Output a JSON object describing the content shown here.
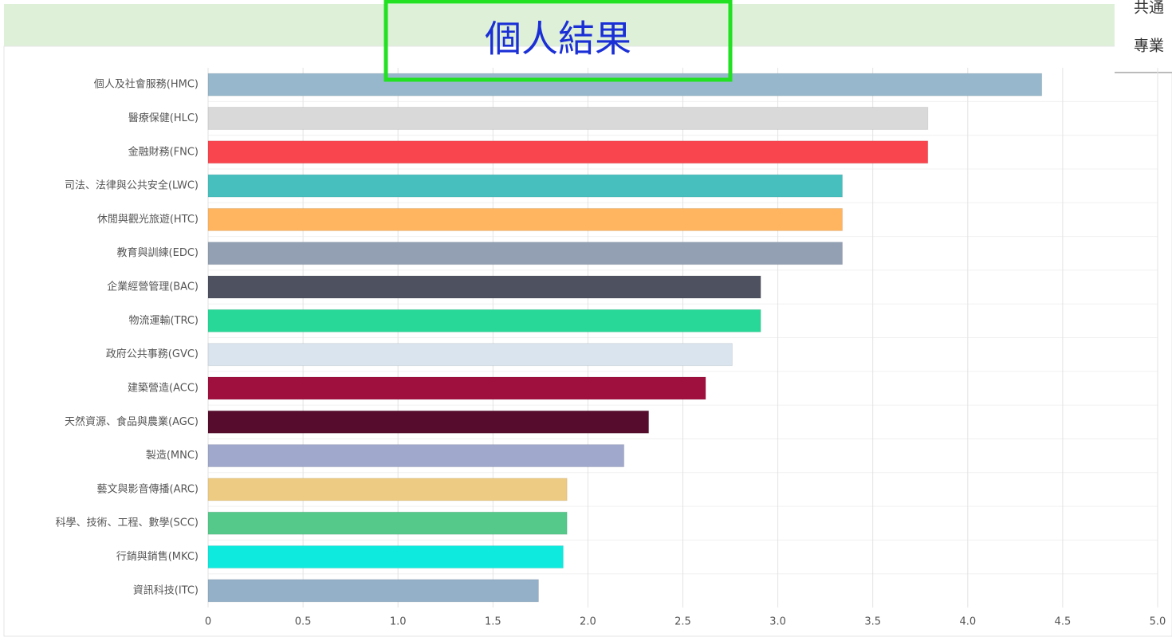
{
  "header": {
    "title": "個人結果"
  },
  "side_panel": {
    "items": [
      "共通",
      "專業"
    ]
  },
  "chart_data": {
    "type": "hbar",
    "categories": [
      "個人及社會服務(HMC)",
      "醫療保健(HLC)",
      "金融財務(FNC)",
      "司法、法律與公共安全(LWC)",
      "休閒與觀光旅遊(HTC)",
      "教育與訓練(EDC)",
      "企業經營管理(BAC)",
      "物流運輸(TRC)",
      "政府公共事務(GVC)",
      "建築營造(ACC)",
      "天然資源、食品與農業(AGC)",
      "製造(MNC)",
      "藝文與影音傳播(ARC)",
      "科學、技術、工程、數學(SCC)",
      "行銷與銷售(MKC)",
      "資訊科技(ITC)"
    ],
    "values": [
      4.39,
      3.79,
      3.79,
      3.34,
      3.34,
      3.34,
      2.91,
      2.91,
      2.76,
      2.62,
      2.32,
      2.19,
      1.89,
      1.89,
      1.87,
      1.74
    ],
    "colors": [
      "#97b8cc",
      "#d9d9d9",
      "#f9464e",
      "#48bfbf",
      "#ffb560",
      "#93a0b3",
      "#4d5160",
      "#28d898",
      "#d9e4ee",
      "#a0103f",
      "#560c2c",
      "#a0a8cb",
      "#eecb83",
      "#55c98a",
      "#0feadf",
      "#93b0c8"
    ],
    "xlim": [
      0,
      5
    ],
    "xticks": [
      0,
      0.5,
      {
        "value": 1,
        "label": "1.0"
      },
      1.5,
      {
        "value": 2,
        "label": "2.0"
      },
      2.5,
      {
        "value": 3,
        "label": "3.0"
      },
      3.5,
      {
        "value": 4,
        "label": "4.0"
      },
      4.5,
      {
        "value": 5,
        "label": "5.0"
      }
    ],
    "grid": true
  }
}
